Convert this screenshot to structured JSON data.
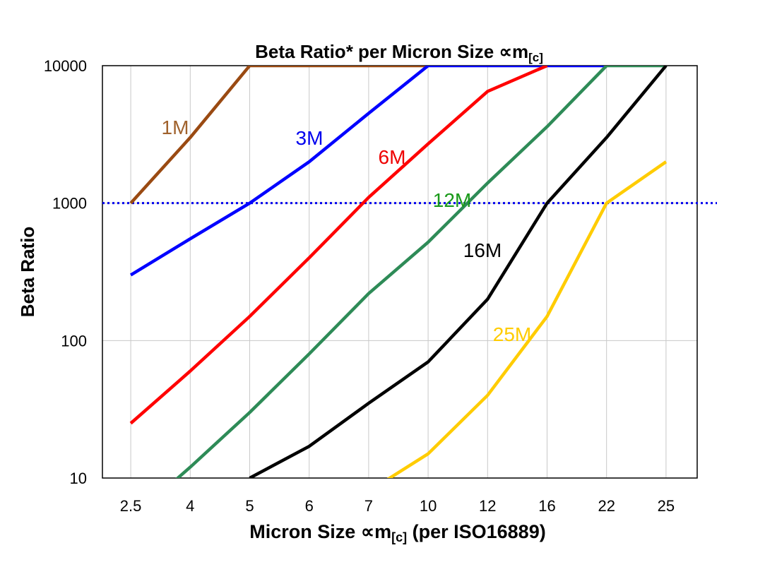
{
  "chart_data": {
    "type": "line",
    "title": "Beta Ratio* per Micron Size ∝m",
    "title_subscript": "[c]",
    "xlabel": "Micron Size ∝m",
    "xlabel_subscript": "[c]",
    "xlabel_suffix": " (per ISO16889)",
    "ylabel": "Beta Ratio",
    "y_scale": "log",
    "ylim": [
      10,
      10000
    ],
    "y_ticks": [
      "10",
      "100",
      "1000",
      "10000"
    ],
    "categories": [
      "2.5",
      "4",
      "5",
      "6",
      "7",
      "10",
      "12",
      "16",
      "22",
      "25"
    ],
    "grid": true,
    "reference_line": {
      "value": 1000,
      "color": "#0000ee",
      "style": "dotted"
    },
    "series": [
      {
        "name": "1M",
        "color": "#9a4a12",
        "label_color": "#a0622d",
        "values": [
          1000,
          3000,
          10000,
          10000,
          10000,
          10000,
          null,
          null,
          null,
          null
        ]
      },
      {
        "name": "3M",
        "color": "#0000ff",
        "label_color": "#0000ee",
        "values": [
          300,
          550,
          1000,
          2000,
          4500,
          10000,
          10000,
          10000,
          10000,
          null
        ]
      },
      {
        "name": "6M",
        "color": "#ff0000",
        "label_color": "#ee0000",
        "values": [
          25,
          60,
          150,
          400,
          1100,
          2700,
          6500,
          10000,
          null,
          null
        ]
      },
      {
        "name": "12M",
        "color": "#2e8b57",
        "label_color": "#1a9a1a",
        "values": [
          5,
          12,
          30,
          80,
          220,
          520,
          1400,
          3600,
          10000,
          10000
        ]
      },
      {
        "name": "16M",
        "color": "#000000",
        "label_color": "#000000",
        "values": [
          null,
          null,
          10,
          17,
          35,
          70,
          200,
          1000,
          3000,
          10000
        ]
      },
      {
        "name": "25M",
        "color": "#ffcc00",
        "label_color": "#ffcc00",
        "values": [
          null,
          null,
          null,
          null,
          8,
          15,
          40,
          150,
          1000,
          2000
        ]
      }
    ]
  }
}
